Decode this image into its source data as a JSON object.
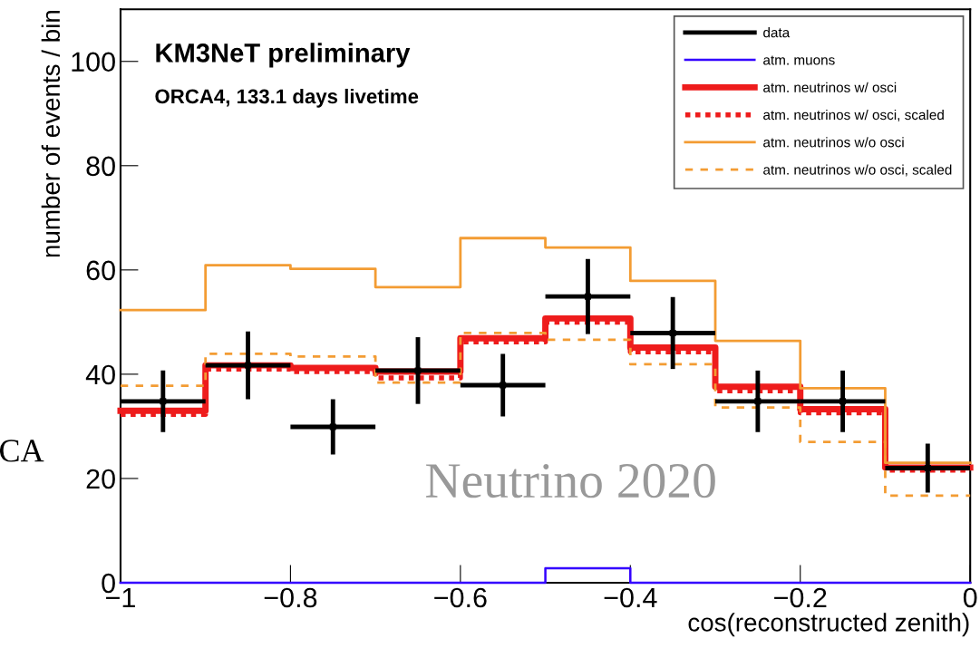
{
  "chart_data": {
    "type": "step",
    "xlabel": "cos(reconstructed zenith)",
    "ylabel": "number of events / bin",
    "series": [
      {
        "name": "data",
        "type": "scatter",
        "color": "#000000",
        "x": [
          -0.95,
          -0.85,
          -0.75,
          -0.65,
          -0.55,
          -0.45,
          -0.35,
          -0.25,
          -0.15,
          -0.05
        ],
        "values": [
          34.8,
          41.7,
          29.9,
          40.7,
          37.9,
          54.9,
          47.9,
          34.8,
          34.8,
          22.0
        ],
        "errors": [
          5.9,
          6.5,
          5.3,
          6.4,
          6.0,
          7.2,
          6.9,
          5.9,
          5.9,
          4.7
        ],
        "xerrors": [
          0.05,
          0.05,
          0.05,
          0.05,
          0.05,
          0.05,
          0.05,
          0.05,
          0.05,
          0.05
        ]
      },
      {
        "name": "atm. muons",
        "color": "#3300ff",
        "line_style": "solid",
        "x": [
          -1,
          -0.9,
          -0.8,
          -0.7,
          -0.6,
          -0.5,
          -0.4,
          -0.3,
          -0.2,
          -0.1,
          0
        ],
        "values": [
          0,
          0,
          0,
          0,
          0,
          2.8,
          0,
          0,
          0,
          0,
          0
        ]
      },
      {
        "name": "atm. neutrinos w/ osci",
        "color": "#ee1c1c",
        "line_style": "solid",
        "x": [
          -1,
          -0.9,
          -0.8,
          -0.7,
          -0.6,
          -0.5,
          -0.4,
          -0.3,
          -0.2,
          -0.1,
          0
        ],
        "values": [
          33.0,
          41.7,
          41.2,
          40.5,
          46.9,
          50.7,
          45.1,
          37.6,
          33.3,
          22.1,
          22.1
        ]
      },
      {
        "name": "atm. neutrinos w/ osci, scaled",
        "color": "#ee1c1c",
        "line_style": "dotted",
        "x": [
          -1,
          -0.9,
          -0.8,
          -0.7,
          -0.6,
          -0.5,
          -0.4,
          -0.3,
          -0.2,
          -0.1,
          0
        ],
        "values": [
          32.3,
          41.0,
          40.5,
          39.3,
          46.2,
          50.0,
          44.3,
          36.8,
          32.6,
          21.6,
          21.6
        ]
      },
      {
        "name": "atm. neutrinos w/o osci",
        "color": "#f39c33",
        "line_style": "solid",
        "x": [
          -1,
          -0.9,
          -0.8,
          -0.7,
          -0.6,
          -0.5,
          -0.4,
          -0.3,
          -0.2,
          -0.1,
          0
        ],
        "values": [
          52.3,
          60.9,
          60.2,
          56.7,
          66.1,
          64.3,
          57.9,
          46.4,
          37.3,
          23.0,
          23.0
        ]
      },
      {
        "name": "atm. neutrinos w/o osci, scaled",
        "color": "#f39c33",
        "line_style": "dashed",
        "x": [
          -1,
          -0.9,
          -0.8,
          -0.7,
          -0.6,
          -0.5,
          -0.4,
          -0.3,
          -0.2,
          -0.1,
          0
        ],
        "values": [
          37.8,
          43.9,
          43.4,
          38.4,
          47.9,
          46.6,
          41.9,
          33.6,
          27.0,
          16.7,
          16.7
        ]
      }
    ],
    "xlim": [
      -1,
      0
    ],
    "xticks": [
      {
        "value": -1,
        "label": "−1"
      },
      {
        "value": -0.8,
        "label": "−0.8"
      },
      {
        "value": -0.6,
        "label": "−0.6"
      },
      {
        "value": -0.4,
        "label": "−0.4"
      },
      {
        "value": -0.2,
        "label": "−0.2"
      },
      0
    ],
    "ylim": [
      0,
      110
    ],
    "yticks": [
      0,
      20,
      40,
      60,
      80,
      100
    ],
    "legend": "top right",
    "annotations": [
      "KM3NeT preliminary",
      "ORCA4, 133.1 days livetime",
      "Neutrino 2020",
      "CA"
    ]
  }
}
